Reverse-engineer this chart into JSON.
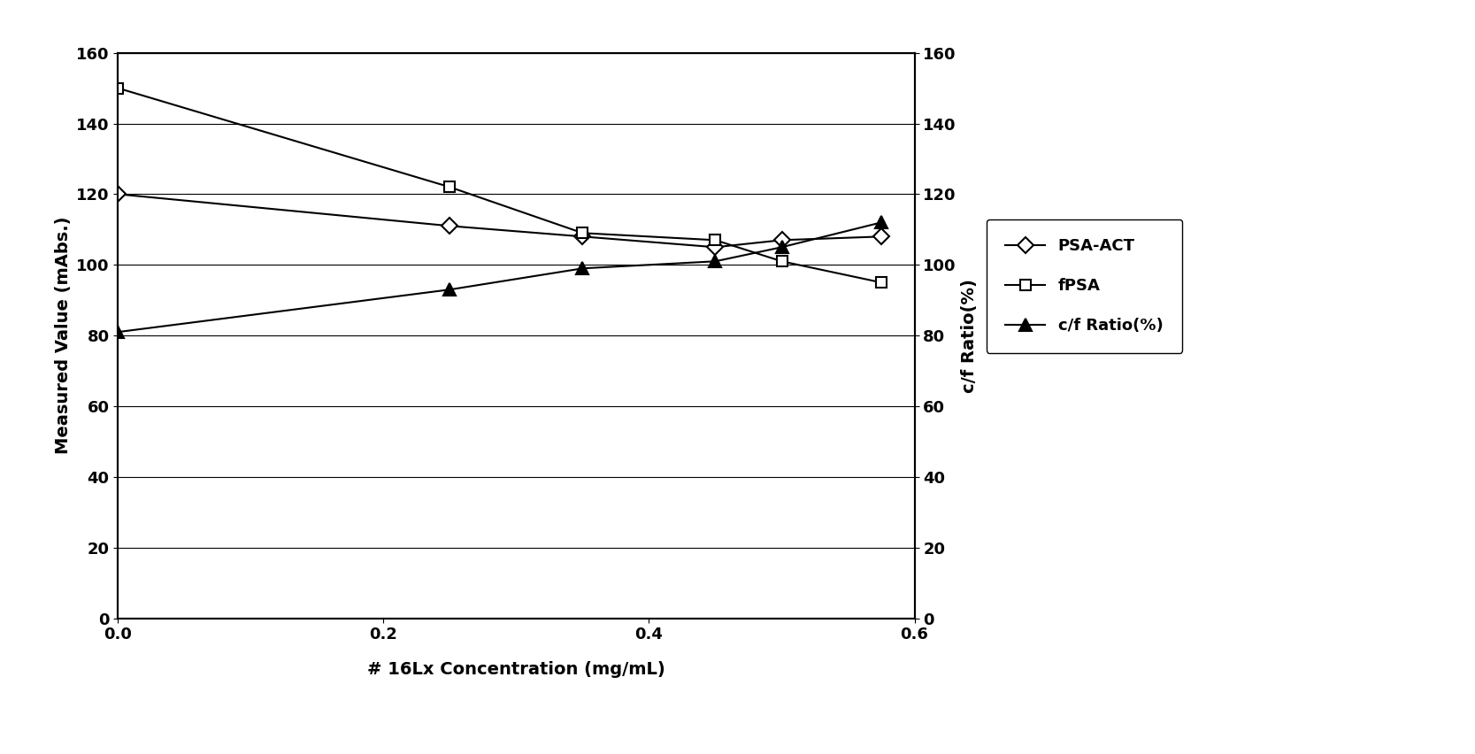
{
  "x": [
    0,
    0.25,
    0.35,
    0.45,
    0.5,
    0.575
  ],
  "psa_act": [
    120,
    111,
    108,
    105,
    107,
    108
  ],
  "fpsa": [
    150,
    122,
    109,
    107,
    101,
    95
  ],
  "cf_ratio": [
    81,
    93,
    99,
    101,
    105,
    112
  ],
  "xlabel": "# 16Lx Concentration (mg/mL)",
  "ylabel_left": "Measured Value (mAbs.)",
  "ylabel_right": "c/f Ratio(%)",
  "ylim_left": [
    0,
    160
  ],
  "ylim_right": [
    0,
    160
  ],
  "yticks": [
    0,
    20,
    40,
    60,
    80,
    100,
    120,
    140,
    160
  ],
  "xlim": [
    0,
    0.6
  ],
  "xticks": [
    0,
    0.2,
    0.4,
    0.6
  ],
  "legend_labels": [
    "PSA-ACT",
    "fPSA",
    "c/f Ratio(%)"
  ],
  "line_color": "#000000",
  "bg_color": "#ffffff",
  "grid_color": "#000000",
  "title_fontsize": 14,
  "axis_label_fontsize": 14,
  "tick_fontsize": 13,
  "legend_fontsize": 13
}
